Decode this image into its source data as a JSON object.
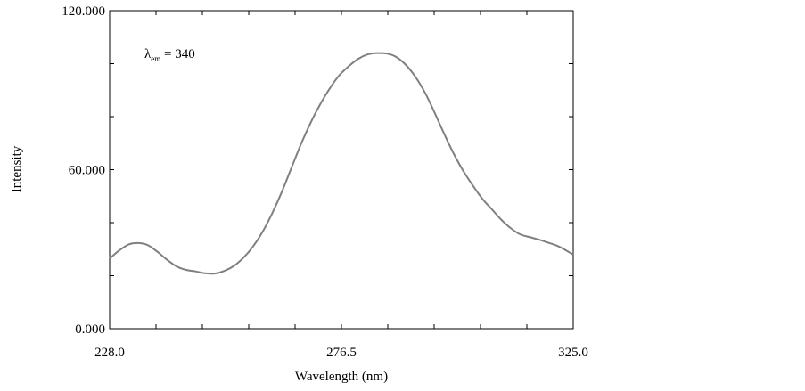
{
  "chart_data": {
    "type": "line",
    "title": "",
    "xlabel": "Wavelength (nm)",
    "ylabel": "Intensity",
    "xlim": [
      228.0,
      325.0
    ],
    "ylim": [
      0.0,
      120.0
    ],
    "x_ticks": [
      "228.0",
      "276.5",
      "325.0"
    ],
    "y_ticks": [
      "0.000",
      "60.000",
      "120.000"
    ],
    "grid": false,
    "annotation": {
      "symbol": "λ",
      "subscript": "em",
      "text": " = 340"
    },
    "series": [
      {
        "color": "#808080",
        "x": [
          228.0,
          230.0,
          232.0,
          234.0,
          236.0,
          238.0,
          240.0,
          242.0,
          244.0,
          246.0,
          248.0,
          250.0,
          252.0,
          254.0,
          256.0,
          258.0,
          260.0,
          262.0,
          264.0,
          266.0,
          268.0,
          270.0,
          272.0,
          274.0,
          276.0,
          278.0,
          280.0,
          282.0,
          284.0,
          286.0,
          288.0,
          290.0,
          292.0,
          294.0,
          296.0,
          298.0,
          300.0,
          302.0,
          304.0,
          306.0,
          308.0,
          310.0,
          312.0,
          314.0,
          316.0,
          318.0,
          320.0,
          322.0,
          324.0,
          325.0
        ],
        "y": [
          26.5,
          29.5,
          31.8,
          32.3,
          31.5,
          29.0,
          26.0,
          23.5,
          22.2,
          21.6,
          20.9,
          20.8,
          21.8,
          23.7,
          26.8,
          31.0,
          36.5,
          43.5,
          51.5,
          60.5,
          69.5,
          77.5,
          84.5,
          90.5,
          95.5,
          99.0,
          101.8,
          103.5,
          104.0,
          103.8,
          102.5,
          99.5,
          95.0,
          89.0,
          81.5,
          73.5,
          66.0,
          59.5,
          54.0,
          49.0,
          45.0,
          41.0,
          37.8,
          35.5,
          34.5,
          33.5,
          32.3,
          31.0,
          29.0,
          28.0
        ]
      }
    ]
  }
}
